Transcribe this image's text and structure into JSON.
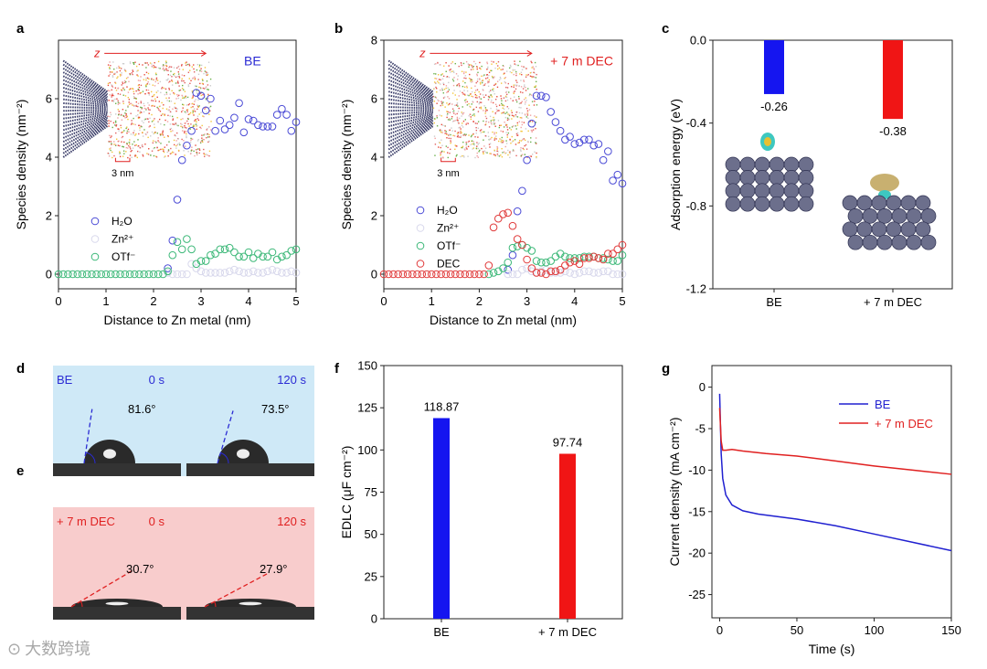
{
  "panel_labels": [
    "a",
    "b",
    "c",
    "d",
    "e",
    "f",
    "g"
  ],
  "watermark": "大数跨境",
  "chart_data": [
    {
      "id": "a",
      "type": "scatter",
      "xlabel": "Distance to Zn metal (nm)",
      "ylabel": "Species density (nm⁻²)",
      "xlim": [
        0,
        5
      ],
      "ylim": [
        -0.5,
        8
      ],
      "xticks": [
        0,
        1,
        2,
        3,
        4,
        5
      ],
      "yticks": [
        0,
        2,
        4,
        6
      ],
      "annotation": "BE",
      "annotation_color": "#2b2bd4",
      "inset_axis": "z",
      "inset_scale": "3 nm",
      "legend": [
        "H₂O",
        "Zn²⁺",
        "OTf⁻"
      ],
      "series": [
        {
          "name": "H₂O",
          "color": "#4b4bd6",
          "x0": 2.3,
          "dx": 0.1,
          "y": [
            0.2,
            1.15,
            2.55,
            3.9,
            4.4,
            4.9,
            6.2,
            6.1,
            5.6,
            6.0,
            4.9,
            5.25,
            4.95,
            5.1,
            5.35,
            5.85,
            4.85,
            5.3,
            5.25,
            5.1,
            5.05,
            5.05,
            5.05,
            5.45,
            5.65,
            5.45,
            4.9,
            5.2
          ]
        },
        {
          "name": "Zn²⁺",
          "color": "#d8d8ec",
          "x0": 2.3,
          "dx": 0.1,
          "y": [
            0.05,
            0,
            0,
            0,
            0,
            0.35,
            0.2,
            0.1,
            0.05,
            0.05,
            0.05,
            0.05,
            0.05,
            0.1,
            0.15,
            0.1,
            0.05,
            0.05,
            0.1,
            0.05,
            0.05,
            0.1,
            0.15,
            0.1,
            0.05,
            0.05,
            0.1,
            0.05
          ]
        },
        {
          "name": "OTf⁻",
          "color": "#3cb878",
          "x0": 0,
          "dx": 0.1,
          "y": [
            0,
            0,
            0,
            0,
            0,
            0,
            0,
            0,
            0,
            0,
            0,
            0,
            0,
            0,
            0,
            0,
            0,
            0,
            0,
            0,
            0,
            0,
            0,
            0.1,
            0.65,
            1.1,
            0.85,
            1.2,
            0.85,
            0.35,
            0.45,
            0.45,
            0.65,
            0.7,
            0.85,
            0.85,
            0.9,
            0.75,
            0.6,
            0.6,
            0.75,
            0.55,
            0.7,
            0.6,
            0.6,
            0.75,
            0.5,
            0.6,
            0.65,
            0.8,
            0.85
          ]
        }
      ]
    },
    {
      "id": "b",
      "type": "scatter",
      "xlabel": "Distance to Zn metal (nm)",
      "ylabel": "Species density (nm⁻²)",
      "xlim": [
        0,
        5
      ],
      "ylim": [
        -0.5,
        8
      ],
      "xticks": [
        0,
        1,
        2,
        3,
        4,
        5
      ],
      "yticks": [
        0,
        2,
        4,
        6,
        8
      ],
      "annotation": "+ 7 m DEC",
      "annotation_color": "#e02020",
      "inset_axis": "z",
      "inset_scale": "3 nm",
      "legend": [
        "H₂O",
        "Zn²⁺",
        "OTf⁻",
        "DEC"
      ],
      "series": [
        {
          "name": "H₂O",
          "color": "#4b4bd6",
          "x0": 2.6,
          "dx": 0.1,
          "y": [
            0.15,
            0.65,
            2.15,
            2.85,
            3.9,
            5.15,
            6.1,
            6.1,
            6.05,
            5.55,
            5.2,
            4.9,
            4.6,
            4.7,
            4.45,
            4.5,
            4.6,
            4.6,
            4.4,
            4.45,
            3.9,
            4.2,
            3.2,
            3.4,
            3.1
          ]
        },
        {
          "name": "Zn²⁺",
          "color": "#d8d8ec",
          "x0": 2.6,
          "dx": 0.1,
          "y": [
            0,
            0,
            0,
            0.15,
            0.2,
            0.1,
            0.05,
            0.1,
            0.15,
            0.05,
            0.05,
            0.05,
            0.1,
            0.05,
            0,
            0.05,
            0.1,
            0.1,
            0.05,
            0.05,
            0.1,
            0.1,
            0,
            0,
            0
          ]
        },
        {
          "name": "OTf⁻",
          "color": "#3cb878",
          "x0": 2.2,
          "dx": 0.1,
          "y": [
            0,
            0.05,
            0.1,
            0.2,
            0.4,
            0.9,
            0.95,
            1.0,
            0.9,
            0.8,
            0.45,
            0.4,
            0.4,
            0.45,
            0.6,
            0.7,
            0.6,
            0.55,
            0.55,
            0.55,
            0.6,
            0.6,
            0.6,
            0.55,
            0.55,
            0.5,
            0.45,
            0.45,
            0.65
          ]
        },
        {
          "name": "DEC",
          "color": "#e03a3a",
          "x0": 0,
          "dx": 0.1,
          "y": [
            0,
            0,
            0,
            0,
            0,
            0,
            0,
            0,
            0,
            0,
            0,
            0,
            0,
            0,
            0,
            0,
            0,
            0,
            0,
            0,
            0,
            0,
            0.3,
            1.6,
            1.9,
            2.05,
            2.1,
            1.65,
            1.2,
            1.0,
            0.5,
            0.2,
            0.05,
            0.05,
            0,
            0.1,
            0.1,
            0.15,
            0.3,
            0.4,
            0.45,
            0.35,
            0.55,
            0.55,
            0.6,
            0.55,
            0.5,
            0.7,
            0.7,
            0.85,
            1.0
          ]
        }
      ]
    },
    {
      "id": "c",
      "type": "bar",
      "xlabel": "",
      "ylabel": "Adsorption energy (eV)",
      "ylim": [
        -1.2,
        0
      ],
      "yticks": [
        0,
        -0.4,
        -0.8,
        -1.2
      ],
      "ytick_labels": [
        "0.0",
        "-0.4",
        "-0.8",
        "-1.2"
      ],
      "categories": [
        "BE",
        "+ 7 m DEC"
      ],
      "values": [
        -0.26,
        -0.38
      ],
      "value_labels": [
        "-0.26",
        "-0.38"
      ],
      "colors": [
        "#1515f0",
        "#f01515"
      ]
    },
    {
      "id": "f",
      "type": "bar",
      "xlabel": "",
      "ylabel": "EDLC (μF cm⁻²)",
      "ylim": [
        0,
        150
      ],
      "yticks": [
        0,
        25,
        50,
        75,
        100,
        125,
        150
      ],
      "categories": [
        "BE",
        "+ 7 m DEC"
      ],
      "values": [
        118.87,
        97.74
      ],
      "value_labels": [
        "118.87",
        "97.74"
      ],
      "colors": [
        "#1515f0",
        "#f01515"
      ]
    },
    {
      "id": "g",
      "type": "line",
      "xlabel": "Time (s)",
      "ylabel": "Current density (mA cm⁻²)",
      "xlim": [
        -5,
        150
      ],
      "ylim": [
        -27.8,
        2.6
      ],
      "xticks": [
        0,
        50,
        100,
        150
      ],
      "yticks": [
        0,
        -5,
        -10,
        -15,
        -20,
        -25
      ],
      "legend_position": "top-right",
      "series": [
        {
          "name": "BE",
          "color": "#2020d0",
          "points": [
            [
              0,
              -0.8
            ],
            [
              1,
              -8
            ],
            [
              2,
              -11
            ],
            [
              4,
              -13
            ],
            [
              8,
              -14.2
            ],
            [
              15,
              -14.9
            ],
            [
              25,
              -15.3
            ],
            [
              50,
              -15.9
            ],
            [
              75,
              -16.7
            ],
            [
              100,
              -17.7
            ],
            [
              125,
              -18.7
            ],
            [
              150,
              -19.7
            ]
          ]
        },
        {
          "name": "+ 7 m DEC",
          "color": "#e02020",
          "points": [
            [
              0,
              -2.5
            ],
            [
              1,
              -6.5
            ],
            [
              2,
              -7.6
            ],
            [
              4,
              -7.6
            ],
            [
              8,
              -7.5
            ],
            [
              15,
              -7.7
            ],
            [
              30,
              -8.0
            ],
            [
              50,
              -8.3
            ],
            [
              75,
              -8.9
            ],
            [
              100,
              -9.5
            ],
            [
              125,
              -10.0
            ],
            [
              150,
              -10.5
            ]
          ]
        }
      ]
    }
  ],
  "contact_angle": {
    "d": {
      "label": "BE",
      "label_color": "#2b2bd4",
      "bg": "#cfe9f7",
      "times": [
        "0 s",
        "120 s"
      ],
      "angles": [
        "81.6°",
        "73.5°"
      ],
      "angle_values": [
        81.6,
        73.5
      ],
      "line_color": "#2b2bd4"
    },
    "e": {
      "label": "+ 7 m DEC",
      "label_color": "#e02020",
      "bg": "#f8cccc",
      "times": [
        "0 s",
        "120 s"
      ],
      "angles": [
        "30.7°",
        "27.9°"
      ],
      "angle_values": [
        30.7,
        27.9
      ],
      "line_color": "#e02020"
    }
  }
}
